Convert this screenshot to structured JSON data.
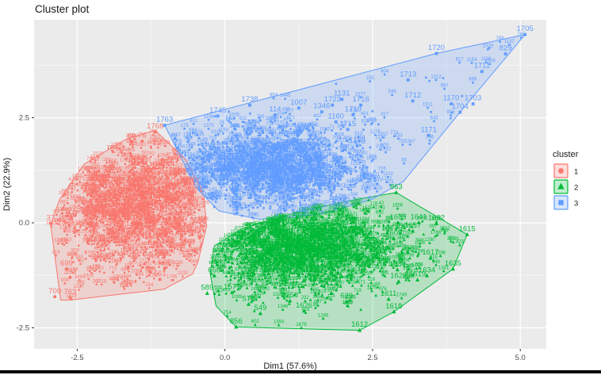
{
  "chart_data": {
    "type": "scatter",
    "title": "Cluster plot",
    "xlabel": "Dim1 (57.6%)",
    "ylabel": "Dim2 (22.9%)",
    "xlim": [
      -3.23,
      5.44
    ],
    "ylim": [
      -3.0,
      4.83
    ],
    "x_ticks": [
      {
        "v": -2.5,
        "label": "-2.5"
      },
      {
        "v": 0,
        "label": "0.0"
      },
      {
        "v": 2.5,
        "label": "2.5"
      },
      {
        "v": 5,
        "label": "5.0"
      }
    ],
    "y_ticks": [
      {
        "v": 2.5,
        "label": "2.5"
      },
      {
        "v": 0,
        "label": "0.0"
      },
      {
        "v": -2.5,
        "label": "-2.5"
      }
    ],
    "grid": {
      "major_color": "#FFFFFF",
      "minor_color": "#FFFFFF",
      "x_minor": [
        -1.25,
        1.25,
        3.75
      ],
      "y_minor": [
        -1.25,
        1.25,
        3.75
      ]
    },
    "panel_background": "#EBEBEB",
    "axis_text_color": "#4D4D4D",
    "title_color": "#1a1a1a",
    "legend": {
      "title": "cluster",
      "position": "right",
      "entries": [
        {
          "label": "1",
          "shape": "circle",
          "color": "#F8766D"
        },
        {
          "label": "2",
          "shape": "triangle",
          "color": "#00BA38"
        },
        {
          "label": "3",
          "shape": "square",
          "color": "#619CFF"
        }
      ]
    },
    "clusters": [
      {
        "id": "1",
        "color": "#F8766D",
        "shape": "circle",
        "point_count_estimate": 1250,
        "center": [
          -1.5,
          0.35
        ],
        "spread": [
          0.72,
          0.75
        ],
        "uniform_fraction": 0.04,
        "hull": [
          [
            -1.18,
            2.2
          ],
          [
            -0.66,
            1.5
          ],
          [
            -0.36,
            0.68
          ],
          [
            -0.31,
            -0.08
          ],
          [
            -0.46,
            -0.95
          ],
          [
            -0.55,
            -1.22
          ],
          [
            -1.03,
            -1.58
          ],
          [
            -2.62,
            -1.84
          ],
          [
            -2.78,
            -1.84
          ],
          [
            -2.95,
            -0.04
          ],
          [
            -2.8,
            0.55
          ],
          [
            -2.38,
            1.4
          ],
          [
            -1.66,
            2.0
          ]
        ],
        "labeled_points": [
          [
            "1768",
            -1.18,
            2.16
          ],
          [
            "76",
            -1.4,
            1.94
          ],
          [
            "69",
            -1.58,
            1.92
          ],
          [
            "37",
            -2.95,
            -0.02
          ],
          [
            "501",
            -1.02,
            -1.08
          ],
          [
            "661",
            -1.1,
            -1.35
          ],
          [
            "699",
            -2.68,
            -1.1
          ],
          [
            "393",
            -2.62,
            -1.3
          ],
          [
            "763",
            -2.62,
            -1.78
          ],
          [
            "700",
            -2.88,
            -1.76
          ]
        ]
      },
      {
        "id": "2",
        "color": "#00BA38",
        "shape": "triangle",
        "point_count_estimate": 1400,
        "center": [
          1.3,
          -0.6
        ],
        "spread": [
          0.85,
          0.5
        ],
        "uniform_fraction": 0.05,
        "hull": [
          [
            2.9,
            0.72
          ],
          [
            4.1,
            -0.28
          ],
          [
            3.86,
            -1.1
          ],
          [
            2.86,
            -2.12
          ],
          [
            2.28,
            -2.56
          ],
          [
            0.19,
            -2.48
          ],
          [
            -0.15,
            -1.98
          ],
          [
            -0.25,
            -1.2
          ],
          [
            -0.18,
            -0.55
          ],
          [
            0.32,
            -0.12
          ],
          [
            1.3,
            0.28
          ],
          [
            2.2,
            0.55
          ]
        ],
        "labeled_points": [
          [
            "863",
            2.9,
            0.72
          ],
          [
            "1639",
            2.93,
            0.0
          ],
          [
            "1641",
            3.28,
            0.0
          ],
          [
            "1632",
            3.58,
            -0.02
          ],
          [
            "1615",
            4.1,
            -0.28
          ],
          [
            "1637",
            3.18,
            -0.2
          ],
          [
            "1608",
            2.86,
            -0.38
          ],
          [
            "1633",
            2.58,
            -0.82
          ],
          [
            "1617",
            3.48,
            -0.84
          ],
          [
            "1635",
            3.86,
            -1.1
          ],
          [
            "1630",
            2.92,
            -1.12
          ],
          [
            "1634",
            3.42,
            -1.26
          ],
          [
            "1619",
            3.26,
            -1.36
          ],
          [
            "1622",
            2.94,
            -1.4
          ],
          [
            "1611",
            2.77,
            -1.82
          ],
          [
            "1618",
            2.86,
            -2.12
          ],
          [
            "1612",
            2.28,
            -2.56
          ],
          [
            "856",
            0.19,
            -2.48
          ],
          [
            "549",
            0.6,
            -2.16
          ],
          [
            "575",
            0.4,
            -1.94
          ],
          [
            "589",
            -0.3,
            -1.68
          ],
          [
            "1577",
            0.12,
            -1.66
          ],
          [
            "658",
            -0.18,
            -1.26
          ],
          [
            "1258",
            1.1,
            -1.86
          ],
          [
            "1626",
            1.34,
            -2.1
          ],
          [
            "629",
            2.06,
            -1.88
          ],
          [
            "1627",
            1.8,
            -1.68
          ]
        ]
      },
      {
        "id": "3",
        "color": "#619CFF",
        "shape": "square",
        "point_count_estimate": 1300,
        "center": [
          0.8,
          1.3
        ],
        "spread": [
          0.8,
          0.5
        ],
        "uniform_fraction": 0.06,
        "hull": [
          [
            -1.02,
            2.32
          ],
          [
            3.58,
            4.03
          ],
          [
            5.08,
            4.48
          ],
          [
            3.98,
            2.63
          ],
          [
            3.02,
            0.98
          ],
          [
            2.48,
            0.55
          ],
          [
            1.6,
            0.2
          ],
          [
            0.6,
            0.08
          ],
          [
            -0.1,
            0.28
          ],
          [
            -0.5,
            0.85
          ],
          [
            -0.8,
            1.72
          ]
        ],
        "labeled_points": [
          [
            "1705",
            5.08,
            4.48
          ],
          [
            "829",
            4.75,
            4.02
          ],
          [
            "1720",
            3.58,
            4.03
          ],
          [
            "1711",
            4.35,
            3.6
          ],
          [
            "1713",
            3.1,
            3.4
          ],
          [
            "1712",
            3.18,
            2.9
          ],
          [
            "1170",
            3.83,
            2.83
          ],
          [
            "1703",
            4.2,
            2.83
          ],
          [
            "1704",
            3.98,
            2.63
          ],
          [
            "1171",
            3.45,
            2.08
          ],
          [
            "1131",
            1.98,
            2.94
          ],
          [
            "1723",
            1.82,
            2.8
          ],
          [
            "1716",
            2.3,
            2.8
          ],
          [
            "1719",
            2.17,
            2.57
          ],
          [
            "1160",
            1.88,
            2.4
          ],
          [
            "1715",
            2.08,
            2.22
          ],
          [
            "1169",
            2.24,
            1.83
          ],
          [
            "1738",
            0.42,
            2.8
          ],
          [
            "1007",
            1.25,
            2.73
          ],
          [
            "1346",
            1.64,
            2.64
          ],
          [
            "114",
            0.85,
            2.57
          ],
          [
            "1745",
            -0.12,
            2.54
          ],
          [
            "1763",
            -1.02,
            2.32
          ],
          [
            "73",
            -0.8,
            1.78
          ],
          [
            "1208",
            1.35,
            1.6
          ]
        ]
      }
    ],
    "label_id_range": [
      1,
      1770
    ]
  }
}
